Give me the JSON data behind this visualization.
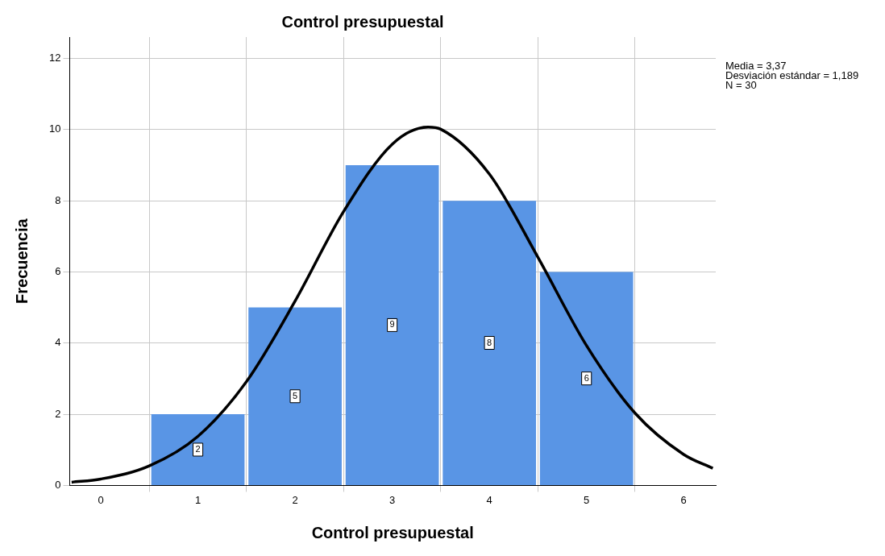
{
  "chart_data": {
    "type": "histogram",
    "title": "Control presupuestal",
    "xlabel": "Control presupuestal",
    "ylabel": "Frecuencia",
    "bins": [
      0.5,
      1.5,
      2.5,
      3.5,
      4.5,
      5.5
    ],
    "values": [
      2,
      5,
      9,
      8,
      6
    ],
    "color": "#5995e5",
    "value_labels": [
      "2",
      "5",
      "9",
      "8",
      "6"
    ],
    "series": [
      {
        "type": "line",
        "color": "#000000",
        "x": [
          -0.3,
          0,
          0.5,
          1,
          1.5,
          2,
          2.5,
          3,
          3.37,
          3.5,
          4,
          4.5,
          5,
          5.5,
          6,
          6.3
        ],
        "values": [
          0.09,
          0.18,
          0.55,
          1.38,
          2.92,
          5.18,
          7.7,
          9.59,
          10.07,
          10.01,
          8.75,
          6.41,
          3.93,
          2.03,
          0.87,
          0.48
        ]
      }
    ],
    "marker": "none",
    "xlim": [
      -0.32,
      6.33
    ],
    "ylim": [
      0,
      12.6
    ],
    "xticks": [
      0,
      1,
      2,
      3,
      4,
      5,
      6
    ],
    "yticks": [
      0,
      2,
      4,
      6,
      8,
      10,
      12
    ],
    "grid": true,
    "annotations": [
      "Media = 3,37",
      "Desviación estándar = 1,189",
      "N = 30"
    ]
  }
}
